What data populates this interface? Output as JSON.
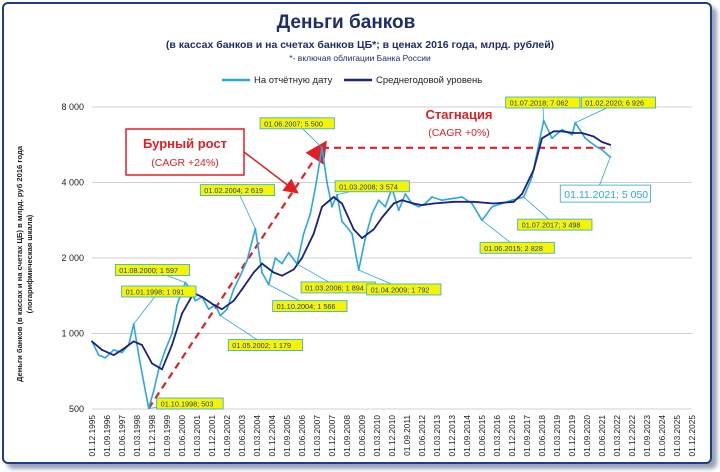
{
  "title": "Деньги банков",
  "subtitle": "(в кассах банков и на счетах банков ЦБ*; в ценах 2016 года, млрд. рублей)",
  "note": "*- включая облигации Банка России",
  "ylabel_line1": "Деньги банков (в кассах и на счетах ЦБ) в млрд. руб 2016 года",
  "ylabel_line2": "(логарифмическая шкала)",
  "legend": {
    "series1": "На отчётную дату",
    "series2": "Среднегодовой уровень"
  },
  "colors": {
    "series1": "#29a8e0",
    "series2": "#1a237e",
    "trend": "#e31e24",
    "callout_fill": "#f5f500",
    "callout_border": "#29a8e0"
  },
  "annotations": {
    "boom_title": "Бурный рост",
    "boom_cagr": "(CAGR +24%)",
    "stag_title": "Стагнация",
    "stag_cagr": "(CAGR +0%)"
  },
  "callouts": [
    {
      "text": "01.10.1998; 503",
      "date": 1998.75,
      "value": 503
    },
    {
      "text": "01.01.1998; 1 091",
      "date": 1998.0,
      "value": 1091
    },
    {
      "text": "01.08.2000; 1 597",
      "date": 2000.58,
      "value": 1597
    },
    {
      "text": "01.05.2002; 1 179",
      "date": 2002.33,
      "value": 1179
    },
    {
      "text": "01.02.2004; 2 619",
      "date": 2004.08,
      "value": 2619
    },
    {
      "text": "01.10.2004; 1 566",
      "date": 2004.75,
      "value": 1566
    },
    {
      "text": "01.03.2006; 1 894",
      "date": 2006.17,
      "value": 1894
    },
    {
      "text": "01.06.2007; 5 500",
      "date": 2007.42,
      "value": 5500
    },
    {
      "text": "01.03.2008; 3 574",
      "date": 2008.17,
      "value": 3574
    },
    {
      "text": "01.04.2009; 1 792",
      "date": 2009.25,
      "value": 1792
    },
    {
      "text": "01.06.2015; 2 828",
      "date": 2015.42,
      "value": 2828
    },
    {
      "text": "01.07.2017; 3 498",
      "date": 2017.5,
      "value": 3498
    },
    {
      "text": "01.07.2018; 7 062",
      "date": 2018.5,
      "value": 7062
    },
    {
      "text": "01.02.2020; 6 926",
      "date": 2020.08,
      "value": 6926
    },
    {
      "text": "01.11.2021; 5 050",
      "date": 2021.83,
      "value": 5050
    }
  ],
  "chart_data": {
    "type": "line",
    "title": "Деньги банков",
    "yscale": "log",
    "ylim": [
      500,
      8000
    ],
    "yticks": [
      500,
      1000,
      2000,
      4000,
      8000
    ],
    "ytick_labels": [
      "500",
      "1 000",
      "2 000",
      "4 000",
      "8 000"
    ],
    "xlim": [
      "1995-12-01",
      "2025-12-01"
    ],
    "xtick_labels": [
      "01.12.1995",
      "01.09.1996",
      "01.06.1997",
      "01.03.1998",
      "01.12.1998",
      "01.09.1999",
      "01.06.2000",
      "01.03.2001",
      "01.12.2001",
      "01.09.2002",
      "01.06.2003",
      "01.03.2004",
      "01.12.2004",
      "01.09.2005",
      "01.06.2006",
      "01.03.2007",
      "01.12.2007",
      "01.09.2008",
      "01.06.2009",
      "01.03.2010",
      "01.12.2010",
      "01.09.2011",
      "01.06.2012",
      "01.03.2013",
      "01.12.2013",
      "01.09.2014",
      "01.06.2015",
      "01.03.2016",
      "01.12.2016",
      "01.09.2017",
      "01.06.2018",
      "01.03.2019",
      "01.12.2019",
      "01.09.2020",
      "01.06.2021",
      "01.03.2022",
      "01.12.2022",
      "01.09.2023",
      "01.06.2024",
      "01.03.2025",
      "01.12.2025"
    ],
    "series": [
      {
        "name": "На отчётную дату",
        "x": [
          "1995-12",
          "1996-04",
          "1996-08",
          "1997-01",
          "1997-06",
          "1997-10",
          "1998-01",
          "1998-04",
          "1998-07",
          "1998-10",
          "1999-01",
          "1999-04",
          "1999-08",
          "1999-12",
          "2000-03",
          "2000-08",
          "2000-11",
          "2001-02",
          "2001-06",
          "2001-10",
          "2002-02",
          "2002-05",
          "2002-09",
          "2003-01",
          "2003-05",
          "2003-09",
          "2004-02",
          "2004-06",
          "2004-10",
          "2005-02",
          "2005-06",
          "2005-10",
          "2006-03",
          "2006-07",
          "2006-11",
          "2007-02",
          "2007-06",
          "2007-09",
          "2007-12",
          "2008-03",
          "2008-06",
          "2008-10",
          "2008-12",
          "2009-04",
          "2009-08",
          "2009-12",
          "2010-04",
          "2010-08",
          "2010-12",
          "2011-04",
          "2011-08",
          "2011-12",
          "2012-04",
          "2012-08",
          "2012-12",
          "2013-06",
          "2013-12",
          "2014-06",
          "2014-12",
          "2015-06",
          "2015-12",
          "2016-06",
          "2016-12",
          "2017-07",
          "2017-12",
          "2018-07",
          "2018-12",
          "2019-06",
          "2019-12",
          "2020-02",
          "2020-08",
          "2021-02",
          "2021-06",
          "2021-11"
        ],
        "y": [
          930,
          820,
          800,
          860,
          840,
          900,
          1091,
          820,
          640,
          503,
          590,
          720,
          860,
          1000,
          1300,
          1597,
          1500,
          1350,
          1400,
          1250,
          1300,
          1179,
          1250,
          1500,
          1700,
          1950,
          2619,
          1750,
          1566,
          2000,
          1900,
          2100,
          1894,
          2500,
          3000,
          3800,
          5500,
          4000,
          3200,
          3574,
          2800,
          2600,
          2500,
          1792,
          2400,
          3000,
          3400,
          3200,
          3800,
          3100,
          3600,
          3300,
          3200,
          3300,
          3500,
          3400,
          3450,
          3500,
          3300,
          2828,
          3200,
          3300,
          3400,
          3498,
          4200,
          7062,
          6000,
          6500,
          6200,
          6926,
          6000,
          5600,
          5400,
          5050
        ]
      },
      {
        "name": "Среднегодовой уровень",
        "x": [
          "1995-12",
          "1996-06",
          "1997-01",
          "1997-06",
          "1998-01",
          "1998-06",
          "1998-12",
          "1999-06",
          "1999-12",
          "2000-06",
          "2001-01",
          "2001-06",
          "2002-01",
          "2002-06",
          "2003-01",
          "2003-06",
          "2004-01",
          "2004-06",
          "2005-01",
          "2005-06",
          "2006-01",
          "2006-06",
          "2007-01",
          "2007-06",
          "2008-01",
          "2008-06",
          "2009-01",
          "2009-06",
          "2010-01",
          "2010-06",
          "2011-01",
          "2011-06",
          "2012-01",
          "2012-06",
          "2013-01",
          "2014-01",
          "2015-01",
          "2016-01",
          "2017-01",
          "2017-06",
          "2018-01",
          "2018-06",
          "2019-01",
          "2019-06",
          "2020-01",
          "2020-06",
          "2021-01",
          "2021-06",
          "2021-11"
        ],
        "y": [
          930,
          860,
          820,
          860,
          930,
          900,
          760,
          720,
          900,
          1200,
          1450,
          1400,
          1300,
          1250,
          1350,
          1500,
          1750,
          1900,
          1750,
          1700,
          1800,
          2000,
          2500,
          3200,
          3500,
          3300,
          2600,
          2400,
          2600,
          2900,
          3300,
          3400,
          3300,
          3250,
          3300,
          3350,
          3350,
          3300,
          3350,
          3600,
          4500,
          6000,
          6400,
          6400,
          6300,
          6300,
          6100,
          5800,
          5650
        ]
      }
    ],
    "trend_lines": [
      {
        "name": "boom",
        "from": [
          "1998-10",
          503
        ],
        "to": [
          "2007-06",
          5500
        ]
      },
      {
        "name": "stagnation",
        "from": [
          "2007-06",
          5500
        ],
        "to": [
          "2021-11",
          5500
        ]
      }
    ]
  }
}
